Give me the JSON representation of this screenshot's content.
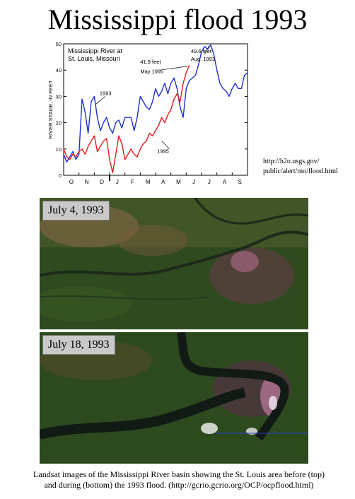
{
  "title": "Mississippi flood 1993",
  "url_note": {
    "line1": "http://h2o.usgs.gov/",
    "line2": "public/alert/mo/flood.html"
  },
  "chart_data": {
    "type": "line",
    "title": "Mississippi River at",
    "subtitle": "St. Louis, Missouri",
    "xlabel": "",
    "ylabel": "RIVER STAGE, IN FEET",
    "ylim": [
      0,
      50
    ],
    "yticks": [
      "0",
      "10",
      "20",
      "30",
      "40",
      "50"
    ],
    "categories": [
      "O",
      "N",
      "D",
      "J",
      "F",
      "M",
      "A",
      "M",
      "J",
      "J",
      "A",
      "S"
    ],
    "grid": false,
    "series": [
      {
        "name": "1993",
        "color": "#1f2fd1",
        "x": [
          0,
          0.2,
          0.4,
          0.6,
          0.8,
          1.0,
          1.2,
          1.4,
          1.6,
          1.8,
          2.0,
          2.2,
          2.4,
          2.6,
          2.8,
          3.0,
          3.2,
          3.4,
          3.6,
          3.8,
          4.0,
          4.2,
          4.4,
          4.6,
          4.8,
          5.0,
          5.2,
          5.4,
          5.6,
          5.8,
          6.0,
          6.2,
          6.4,
          6.6,
          6.8,
          7.0,
          7.2,
          7.4,
          7.6,
          7.8,
          8.0,
          8.2,
          8.4,
          8.6,
          8.8,
          9.0,
          9.2,
          9.4,
          9.6,
          9.8,
          10.0,
          10.2,
          10.4,
          10.6,
          10.8,
          11.0,
          11.2,
          11.4,
          11.6,
          11.8,
          12.0
        ],
        "values": [
          8,
          5,
          7,
          9,
          6,
          8,
          29,
          24,
          16,
          28,
          30,
          22,
          17,
          20,
          22,
          18,
          16,
          20,
          21,
          18,
          22,
          22,
          22,
          17,
          22,
          30,
          28,
          26,
          25,
          28,
          33,
          30,
          32,
          35,
          31,
          35,
          37,
          33,
          26,
          22,
          33,
          36,
          37,
          38,
          42,
          47,
          49,
          48,
          49.6,
          46,
          40,
          35,
          33,
          32,
          30,
          33,
          35,
          33,
          33,
          38,
          39
        ]
      },
      {
        "name": "1995",
        "color": "#e41a1a",
        "x": [
          0,
          0.2,
          0.4,
          0.6,
          0.8,
          1.0,
          1.2,
          1.4,
          1.6,
          1.8,
          2.0,
          2.2,
          2.4,
          2.6,
          2.8,
          3.0,
          3.2,
          3.4,
          3.6,
          3.8,
          4.0,
          4.2,
          4.4,
          4.6,
          4.8,
          5.0,
          5.2,
          5.4,
          5.6,
          5.8,
          6.0,
          6.2,
          6.4,
          6.6,
          6.8,
          7.0,
          7.2,
          7.4,
          7.6,
          7.8,
          8.0,
          8.2
        ],
        "values": [
          10,
          7,
          6,
          8,
          7,
          9,
          10,
          8,
          11,
          13,
          15,
          9,
          11,
          13,
          14,
          6,
          1,
          8,
          15,
          12,
          6,
          8,
          10,
          8,
          7,
          10,
          12,
          13,
          16,
          15,
          17,
          19,
          22,
          20,
          23,
          25,
          29,
          31,
          28,
          35,
          39,
          41.9
        ]
      }
    ],
    "annotations": [
      {
        "text": "1993",
        "x": 2.35,
        "y": 30.5
      },
      {
        "text": "41.9 feet",
        "x": 5.0,
        "y": 42.5
      },
      {
        "text": "May 1995",
        "x": 5.0,
        "y": 38.8
      },
      {
        "text": "49.6 feet",
        "x": 8.3,
        "y": 46.5
      },
      {
        "text": "Aug. 1993",
        "x": 8.3,
        "y": 43.5
      },
      {
        "text": "1995",
        "x": 6.1,
        "y": 8.5
      }
    ]
  },
  "images": [
    {
      "label": "July 4, 1993",
      "alt": "Landsat image before flood"
    },
    {
      "label": "July 18, 1993",
      "alt": "Landsat image during flood"
    }
  ],
  "caption": {
    "line1": "Landsat images of the Mississippi River basin showing the St. Louis area before (top)",
    "line2": "and during (bottom) the 1993 flood. (http://gcrio.gcrio.org/OCP/ocpflood.html)"
  }
}
